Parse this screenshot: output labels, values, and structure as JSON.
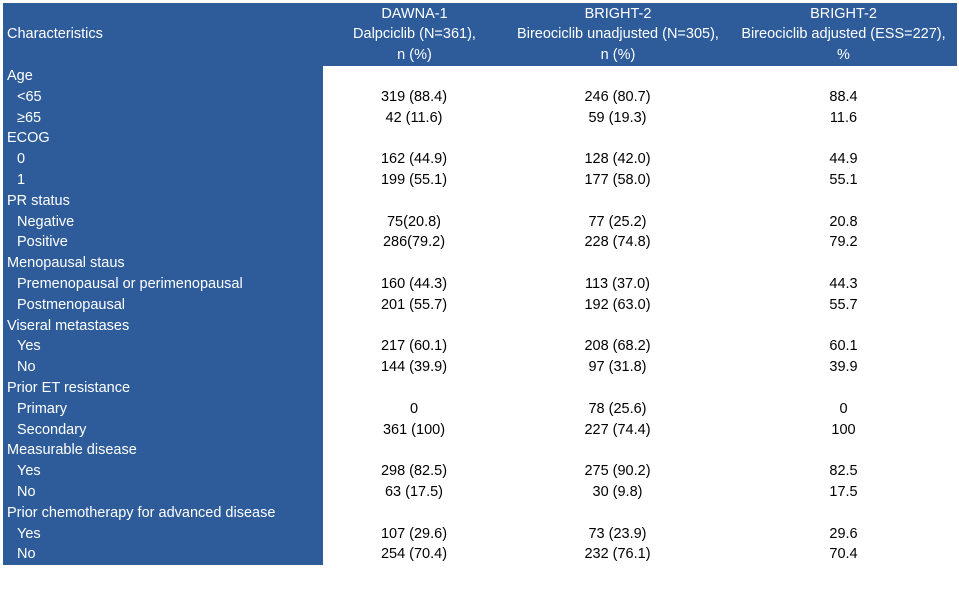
{
  "table": {
    "header": [
      [
        "Characteristics"
      ],
      [
        "DAWNA-1",
        "Dalpciclib (N=361),",
        "n (%)"
      ],
      [
        "BRIGHT-2",
        "Bireociclib unadjusted (N=305),",
        "n (%)"
      ],
      [
        "BRIGHT-2",
        "Bireociclib adjusted (ESS=227),",
        "%"
      ]
    ],
    "groups": [
      {
        "label": "Age",
        "rows": [
          [
            "<65",
            "319 (88.4)",
            "246 (80.7)",
            "88.4"
          ],
          [
            "≥65",
            "42 (11.6)",
            "59 (19.3)",
            "11.6"
          ]
        ]
      },
      {
        "label": "ECOG",
        "rows": [
          [
            "0",
            "162 (44.9)",
            "128 (42.0)",
            "44.9"
          ],
          [
            "1",
            "199 (55.1)",
            "177 (58.0)",
            "55.1"
          ]
        ]
      },
      {
        "label": "PR status",
        "rows": [
          [
            "Negative",
            "75(20.8)",
            "77 (25.2)",
            "20.8"
          ],
          [
            "Positive",
            "286(79.2)",
            "228 (74.8)",
            "79.2"
          ]
        ]
      },
      {
        "label": "Menopausal staus",
        "rows": [
          [
            "Premenopausal or perimenopausal",
            "160 (44.3)",
            "113 (37.0)",
            "44.3"
          ],
          [
            "Postmenopausal",
            "201 (55.7)",
            "192 (63.0)",
            "55.7"
          ]
        ]
      },
      {
        "label": "Viseral metastases",
        "rows": [
          [
            "Yes",
            "217 (60.1)",
            "208 (68.2)",
            "60.1"
          ],
          [
            "No",
            "144 (39.9)",
            "97 (31.8)",
            "39.9"
          ]
        ]
      },
      {
        "label": "Prior ET resistance",
        "rows": [
          [
            "Primary",
            "0",
            "78 (25.6)",
            "0"
          ],
          [
            "Secondary",
            "361 (100)",
            "227 (74.4)",
            "100"
          ]
        ]
      },
      {
        "label": "Measurable disease",
        "rows": [
          [
            "Yes",
            "298 (82.5)",
            "275 (90.2)",
            "82.5"
          ],
          [
            "No",
            "63 (17.5)",
            "30 (9.8)",
            "17.5"
          ]
        ]
      },
      {
        "label": "Prior chemotherapy for advanced disease",
        "rows": [
          [
            "Yes",
            "107 (29.6)",
            "73 (23.9)",
            "29.6"
          ],
          [
            "No",
            "254 (70.4)",
            "232 (76.1)",
            "70.4"
          ]
        ]
      }
    ]
  }
}
